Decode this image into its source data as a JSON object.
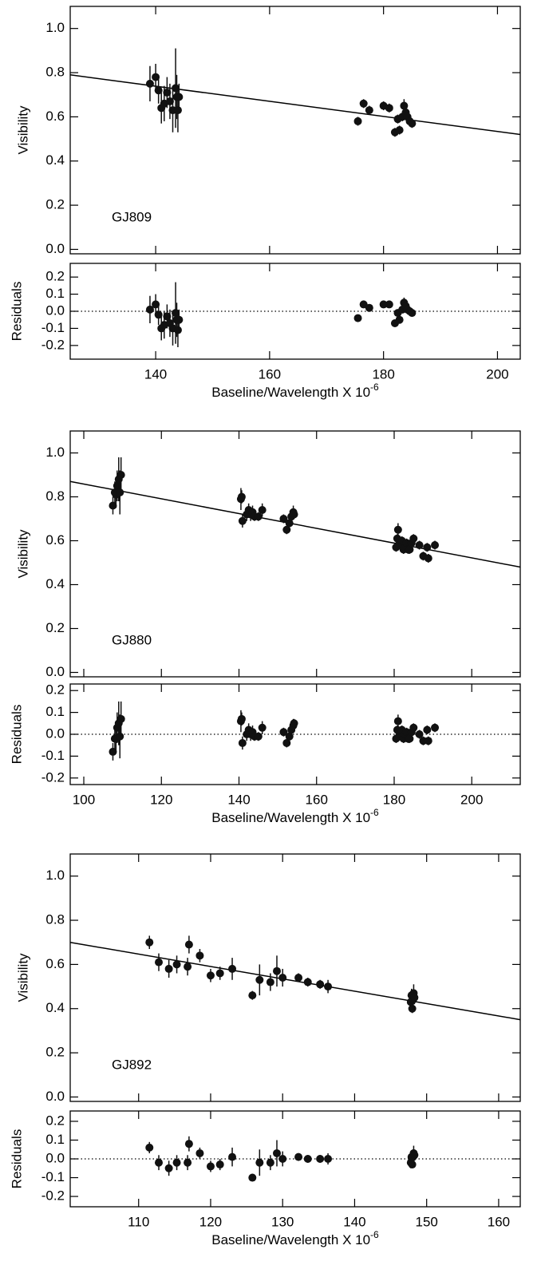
{
  "chart_data": [
    {
      "type": "scatter",
      "ylabel": "Visibility",
      "annotation": "GJ809",
      "color": "#111",
      "xlim": [
        125,
        204
      ],
      "ylim": [
        -0.02,
        1.1
      ],
      "xticks": [
        140,
        160,
        180,
        200
      ],
      "yticks": [
        {
          "value": 0,
          "label": "0.0"
        },
        0.2,
        0.4,
        0.6,
        0.8,
        {
          "value": 1,
          "label": "1.0"
        }
      ],
      "x": [
        139,
        140,
        140.5,
        141,
        141.5,
        142,
        142.5,
        143,
        143.5,
        143.7,
        143.9,
        144.1,
        175.5,
        176.5,
        177.5,
        180,
        181,
        182,
        182.5,
        182.8,
        183.3,
        183.6,
        183.9,
        184.2,
        184.6,
        185
      ],
      "values": [
        0.75,
        0.78,
        0.72,
        0.64,
        0.66,
        0.71,
        0.67,
        0.63,
        0.73,
        0.69,
        0.63,
        0.69,
        0.58,
        0.66,
        0.63,
        0.65,
        0.64,
        0.53,
        0.59,
        0.54,
        0.6,
        0.65,
        0.62,
        0.6,
        0.58,
        0.57
      ],
      "errors": [
        0.08,
        0.06,
        0.06,
        0.07,
        0.08,
        0.07,
        0.08,
        0.1,
        0.18,
        0.1,
        0.1,
        0.06,
        0.02,
        0.02,
        0.02,
        0.02,
        0.02,
        0.02,
        0.02,
        0.02,
        0.02,
        0.03,
        0.02,
        0.02,
        0.02,
        0.02
      ],
      "fit": {
        "x": [
          125,
          204
        ],
        "values": [
          0.79,
          0.52
        ]
      }
    },
    {
      "type": "scatter",
      "ylabel": "Residuals",
      "xlabel": {
        "text": "Baseline/Wavelength X 10",
        "superscript": "-6"
      },
      "color": "#111",
      "xlim": [
        125,
        204
      ],
      "ylim": [
        -0.28,
        0.28
      ],
      "xticks": [
        140,
        160,
        180,
        200
      ],
      "yticks": [
        -0.2,
        -0.1,
        {
          "value": 0,
          "label": "0.0"
        },
        0.1,
        0.2
      ],
      "reference_line": 0,
      "x": [
        139,
        140,
        140.5,
        141,
        141.5,
        142,
        142.5,
        143,
        143.5,
        143.7,
        143.9,
        144.1,
        175.5,
        176.5,
        177.5,
        180,
        181,
        182,
        182.5,
        182.8,
        183.3,
        183.6,
        183.9,
        184.2,
        184.6,
        185
      ],
      "values": [
        0.01,
        0.04,
        -0.02,
        -0.1,
        -0.08,
        -0.03,
        -0.07,
        -0.1,
        -0.01,
        -0.05,
        -0.11,
        -0.05,
        -0.04,
        0.04,
        0.02,
        0.04,
        0.04,
        -0.07,
        -0.01,
        -0.05,
        0.01,
        0.05,
        0.03,
        0.01,
        0,
        -0.01
      ],
      "errors": [
        0.08,
        0.06,
        0.06,
        0.07,
        0.08,
        0.07,
        0.08,
        0.1,
        0.18,
        0.1,
        0.1,
        0.06,
        0.02,
        0.02,
        0.02,
        0.02,
        0.02,
        0.02,
        0.02,
        0.02,
        0.02,
        0.03,
        0.02,
        0.02,
        0.02,
        0.02
      ]
    },
    {
      "type": "scatter",
      "ylabel": "Visibility",
      "annotation": "GJ880",
      "color": "#111",
      "xlim": [
        96.5,
        212.5
      ],
      "ylim": [
        -0.02,
        1.1
      ],
      "xticks": [
        100,
        120,
        140,
        160,
        180,
        200
      ],
      "yticks": [
        {
          "value": 0,
          "label": "0.0"
        },
        0.2,
        0.4,
        0.6,
        0.8,
        {
          "value": 1,
          "label": "1.0"
        }
      ],
      "x": [
        107.5,
        108,
        108.3,
        108.6,
        109,
        109.3,
        109.6,
        140.5,
        140.7,
        140.9,
        142,
        142.5,
        143,
        143.5,
        144,
        145,
        146,
        151.5,
        152.3,
        153,
        153.5,
        154,
        154.2,
        180.5,
        180.8,
        181,
        181.3,
        181.7,
        182,
        182.4,
        182.8,
        183.2,
        183.6,
        184,
        184.5,
        185,
        186.5,
        187.5,
        188.5,
        188.8,
        190.5
      ],
      "values": [
        0.76,
        0.82,
        0.81,
        0.85,
        0.88,
        0.82,
        0.9,
        0.79,
        0.8,
        0.69,
        0.72,
        0.74,
        0.72,
        0.73,
        0.71,
        0.71,
        0.74,
        0.7,
        0.65,
        0.68,
        0.71,
        0.73,
        0.72,
        0.57,
        0.61,
        0.65,
        0.6,
        0.58,
        0.6,
        0.56,
        0.57,
        0.59,
        0.56,
        0.56,
        0.59,
        0.61,
        0.58,
        0.53,
        0.57,
        0.52,
        0.58
      ],
      "errors": [
        0.04,
        0.05,
        0.06,
        0.07,
        0.1,
        0.1,
        0.08,
        0.05,
        0.03,
        0.03,
        0.03,
        0.03,
        0.03,
        0.03,
        0.02,
        0.02,
        0.03,
        0.02,
        0.02,
        0.03,
        0.03,
        0.03,
        0.02,
        0.02,
        0.02,
        0.03,
        0.02,
        0.02,
        0.02,
        0.02,
        0.02,
        0.02,
        0.02,
        0.02,
        0.02,
        0.02,
        0.02,
        0.02,
        0.02,
        0.02,
        0.02
      ],
      "fit": {
        "x": [
          96.5,
          212.5
        ],
        "values": [
          0.87,
          0.48
        ]
      }
    },
    {
      "type": "scatter",
      "ylabel": "Residuals",
      "xlabel": {
        "text": "Baseline/Wavelength X 10",
        "superscript": "-6"
      },
      "color": "#111",
      "xlim": [
        96.5,
        212.5
      ],
      "ylim": [
        -0.23,
        0.23
      ],
      "xticks": [
        100,
        120,
        140,
        160,
        180,
        200
      ],
      "yticks": [
        -0.2,
        -0.1,
        {
          "value": 0,
          "label": "0.0"
        },
        0.1,
        0.2
      ],
      "reference_line": 0,
      "x": [
        107.5,
        108,
        108.3,
        108.6,
        109,
        109.3,
        109.6,
        140.5,
        140.7,
        140.9,
        142,
        142.5,
        143,
        143.5,
        144,
        145,
        146,
        151.5,
        152.3,
        153,
        153.5,
        154,
        154.2,
        180.5,
        180.8,
        181,
        181.3,
        181.7,
        182,
        182.4,
        182.8,
        183.2,
        183.6,
        184,
        184.5,
        185,
        186.5,
        187.5,
        188.5,
        188.8,
        190.5
      ],
      "values": [
        -0.08,
        -0.02,
        -0.02,
        0.03,
        0.05,
        -0.01,
        0.07,
        0.06,
        0.07,
        -0.04,
        0,
        0.02,
        0,
        0.01,
        -0.01,
        -0.01,
        0.03,
        0.01,
        -0.04,
        -0.01,
        0.02,
        0.04,
        0.05,
        -0.02,
        0.02,
        0.06,
        0.01,
        0,
        0.02,
        -0.02,
        0,
        0.01,
        -0.02,
        -0.02,
        0.01,
        0.03,
        0,
        -0.03,
        0.02,
        -0.03,
        0.03
      ],
      "errors": [
        0.04,
        0.05,
        0.06,
        0.07,
        0.1,
        0.1,
        0.08,
        0.05,
        0.03,
        0.03,
        0.03,
        0.03,
        0.03,
        0.03,
        0.02,
        0.02,
        0.03,
        0.02,
        0.02,
        0.03,
        0.03,
        0.03,
        0.02,
        0.02,
        0.02,
        0.03,
        0.02,
        0.02,
        0.02,
        0.02,
        0.02,
        0.02,
        0.02,
        0.02,
        0.02,
        0.02,
        0.02,
        0.02,
        0.02,
        0.02,
        0.02
      ]
    },
    {
      "type": "scatter",
      "ylabel": "Visibility",
      "annotation": "GJ892",
      "color": "#111",
      "xlim": [
        100.5,
        163
      ],
      "ylim": [
        -0.02,
        1.1
      ],
      "xticks": [
        110,
        120,
        130,
        140,
        150,
        160
      ],
      "yticks": [
        {
          "value": 0,
          "label": "0.0"
        },
        0.2,
        0.4,
        0.6,
        0.8,
        {
          "value": 1,
          "label": "1.0"
        }
      ],
      "x": [
        111.5,
        112.8,
        114.2,
        115.3,
        116.8,
        117,
        118.5,
        120,
        121.3,
        123,
        125.8,
        126.8,
        128.3,
        129.2,
        130,
        132.2,
        133.5,
        135.2,
        136.3,
        147.8,
        147.9,
        148,
        148.1,
        148.2,
        148.3
      ],
      "values": [
        0.7,
        0.61,
        0.58,
        0.6,
        0.59,
        0.69,
        0.64,
        0.55,
        0.56,
        0.58,
        0.46,
        0.53,
        0.52,
        0.57,
        0.54,
        0.54,
        0.52,
        0.51,
        0.5,
        0.43,
        0.46,
        0.4,
        0.44,
        0.47,
        0.45
      ],
      "errors": [
        0.03,
        0.04,
        0.04,
        0.04,
        0.04,
        0.04,
        0.03,
        0.03,
        0.03,
        0.05,
        0.02,
        0.07,
        0.04,
        0.07,
        0.04,
        0.02,
        0.02,
        0.02,
        0.03,
        0.03,
        0.03,
        0.02,
        0.04,
        0.04,
        0.03
      ],
      "fit": {
        "x": [
          100.5,
          163
        ],
        "values": [
          0.7,
          0.35
        ]
      }
    },
    {
      "type": "scatter",
      "ylabel": "Residuals",
      "xlabel": {
        "text": "Baseline/Wavelength X 10",
        "superscript": "-6"
      },
      "color": "#111",
      "xlim": [
        100.5,
        163
      ],
      "ylim": [
        -0.255,
        0.255
      ],
      "xticks": [
        110,
        120,
        130,
        140,
        150,
        160
      ],
      "yticks": [
        -0.2,
        -0.1,
        {
          "value": 0,
          "label": "0.0"
        },
        0.1,
        0.2
      ],
      "reference_line": 0,
      "x": [
        111.5,
        112.8,
        114.2,
        115.3,
        116.8,
        117,
        118.5,
        120,
        121.3,
        123,
        125.8,
        126.8,
        128.3,
        129.2,
        130,
        132.2,
        133.5,
        135.2,
        136.3,
        147.8,
        147.9,
        148,
        148.1,
        148.2,
        148.3
      ],
      "values": [
        0.06,
        -0.02,
        -0.05,
        -0.02,
        -0.02,
        0.08,
        0.03,
        -0.04,
        -0.03,
        0.01,
        -0.1,
        -0.02,
        -0.02,
        0.03,
        0,
        0.01,
        0,
        0,
        0,
        -0.02,
        0.01,
        -0.03,
        0.01,
        0.03,
        0.02
      ],
      "errors": [
        0.03,
        0.04,
        0.04,
        0.04,
        0.04,
        0.04,
        0.03,
        0.03,
        0.03,
        0.05,
        0.02,
        0.07,
        0.04,
        0.07,
        0.04,
        0.02,
        0.02,
        0.02,
        0.03,
        0.03,
        0.03,
        0.02,
        0.04,
        0.04,
        0.03
      ]
    }
  ]
}
